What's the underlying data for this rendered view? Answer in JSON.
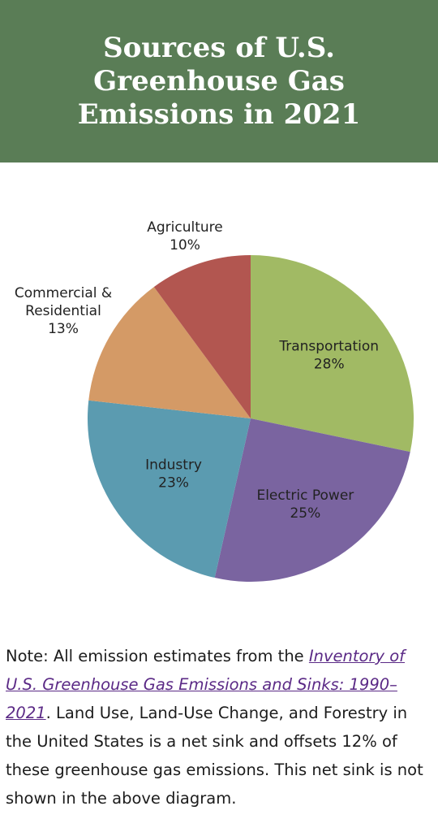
{
  "header": {
    "title": "Sources of U.S. Greenhouse Gas Emissions in 2021"
  },
  "chart_data": {
    "type": "pie",
    "slices": [
      {
        "category": "Transportation",
        "value": 28,
        "label": "28%",
        "color": "#a1ba64"
      },
      {
        "category": "Electric Power",
        "value": 25,
        "label": "25%",
        "color": "#7a64a0"
      },
      {
        "category": "Industry",
        "value": 23,
        "label": "23%",
        "color": "#5b9bb0"
      },
      {
        "category": "Commercial & Residential",
        "value": 13,
        "label": "13%",
        "color": "#d49a66"
      },
      {
        "category": "Agriculture",
        "value": 10,
        "label": "10%",
        "color": "#b25650"
      }
    ],
    "start_angle_deg": 0,
    "direction": "clockwise",
    "legend": "none"
  },
  "note": {
    "prefix": "Note: All emission estimates from the ",
    "link_text": "Inventory of U.S. Greenhouse Gas Emissions and Sinks: 1990–2021",
    "suffix": ". Land Use, Land-Use Change, and Forestry in the United States is a net sink and offsets 12% of these greenhouse gas emissions. This net sink is not shown in the above diagram."
  }
}
